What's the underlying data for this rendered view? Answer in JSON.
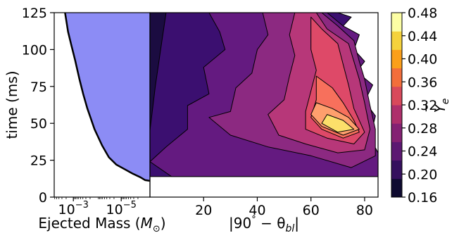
{
  "chart_data": [
    {
      "type": "area",
      "xlabel": "Ejected Mass (",
      "xlabel_unit_symbol": "M",
      "xlabel_unit_subscript": "⊙",
      "xlabel_close": ")",
      "ylabel": "time (ms)",
      "xscale": "log-reversed",
      "xlim": [
        0.00631,
        6.3e-07
      ],
      "ylim": [
        0,
        125
      ],
      "xticks": [
        {
          "value": 0.001,
          "base": "10",
          "exp": "−3"
        },
        {
          "value": 1e-05,
          "base": "10",
          "exp": "−5"
        }
      ],
      "yticks": [
        0,
        25,
        50,
        75,
        100,
        125
      ],
      "fill_color": "#8c8cf5",
      "line_color": "#000000",
      "series": [
        {
          "x": [
            0.00222,
            0.00166,
            0.00122,
            0.00085,
            0.00056,
            0.00039,
            0.00026,
            0.00013,
            6.3e-05,
            3.3e-05,
            1.6e-05,
            6.5e-06,
            3.4e-06,
            1.6e-06,
            1e-06,
            6.3e-07
          ],
          "y": [
            125,
            112,
            103,
            93,
            80,
            70,
            60,
            46,
            35,
            27,
            22,
            18.5,
            16,
            13.5,
            11.5,
            11
          ]
        }
      ]
    },
    {
      "type": "heatmap",
      "xlabel_pre": "|90",
      "xlabel_degree": "°",
      "xlabel_mid": " − θ",
      "xlabel_sub": "bl",
      "xlabel_post": "|",
      "xlim": [
        0,
        85
      ],
      "ylim": [
        0,
        125
      ],
      "xticks": [
        20,
        40,
        60,
        80
      ],
      "colorbar": {
        "label": "Y",
        "label_accent": "‾",
        "label_sub": "e",
        "ticks": [
          "0.16",
          "0.20",
          "0.24",
          "0.28",
          "0.32",
          "0.36",
          "0.40",
          "0.44",
          "0.48"
        ],
        "min": 0.16,
        "max": 0.48,
        "colors": [
          "#0e0a30",
          "#35105e",
          "#5c1872",
          "#842173",
          "#ae2f6b",
          "#d8495b",
          "#f26e3b",
          "#fb9f1a",
          "#f5d23c",
          "#fcfea4"
        ]
      },
      "contour_bands": [
        {
          "level": 0.18,
          "color": "#1b0c41"
        },
        {
          "level": 0.2,
          "color": "#3b0f70"
        },
        {
          "level": 0.24,
          "color": "#641a80"
        },
        {
          "level": 0.28,
          "color": "#8c2981"
        },
        {
          "level": 0.32,
          "color": "#b73779"
        },
        {
          "level": 0.36,
          "color": "#de4968"
        },
        {
          "level": 0.4,
          "color": "#f7705c"
        },
        {
          "level": 0.44,
          "color": "#fe9f6d"
        },
        {
          "level": 0.48,
          "color": "#fcdf6a"
        }
      ]
    }
  ]
}
